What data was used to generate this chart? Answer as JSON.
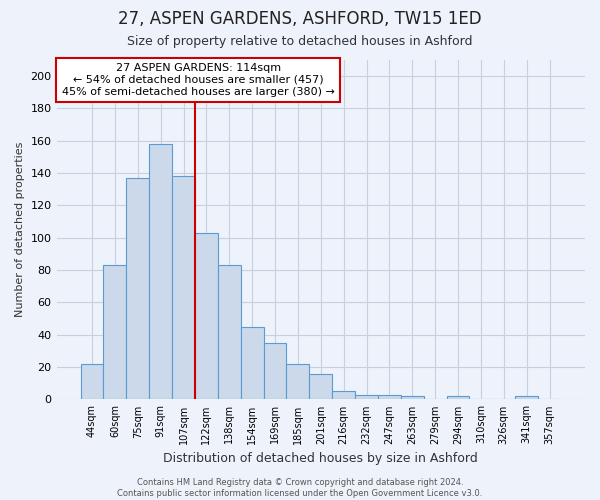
{
  "title1": "27, ASPEN GARDENS, ASHFORD, TW15 1ED",
  "title2": "Size of property relative to detached houses in Ashford",
  "xlabel": "Distribution of detached houses by size in Ashford",
  "ylabel": "Number of detached properties",
  "categories": [
    "44sqm",
    "60sqm",
    "75sqm",
    "91sqm",
    "107sqm",
    "122sqm",
    "138sqm",
    "154sqm",
    "169sqm",
    "185sqm",
    "201sqm",
    "216sqm",
    "232sqm",
    "247sqm",
    "263sqm",
    "279sqm",
    "294sqm",
    "310sqm",
    "326sqm",
    "341sqm",
    "357sqm"
  ],
  "values": [
    22,
    83,
    137,
    158,
    138,
    103,
    83,
    45,
    35,
    22,
    16,
    5,
    3,
    3,
    2,
    0,
    2,
    0,
    0,
    2,
    0
  ],
  "bar_color": "#ccd9ea",
  "bar_edge_color": "#5b9bd5",
  "vline_x_index": 5.0,
  "vline_color": "#cc0000",
  "ylim": [
    0,
    210
  ],
  "yticks": [
    0,
    20,
    40,
    60,
    80,
    100,
    120,
    140,
    160,
    180,
    200
  ],
  "annotation_title": "27 ASPEN GARDENS: 114sqm",
  "annotation_line1": "← 54% of detached houses are smaller (457)",
  "annotation_line2": "45% of semi-detached houses are larger (380) →",
  "annotation_box_color": "#ffffff",
  "annotation_box_edge": "#cc0000",
  "footer1": "Contains HM Land Registry data © Crown copyright and database right 2024.",
  "footer2": "Contains public sector information licensed under the Open Government Licence v3.0.",
  "background_color": "#eef2fa",
  "grid_color": "#c8d0e0",
  "axis_label_color": "#333333"
}
